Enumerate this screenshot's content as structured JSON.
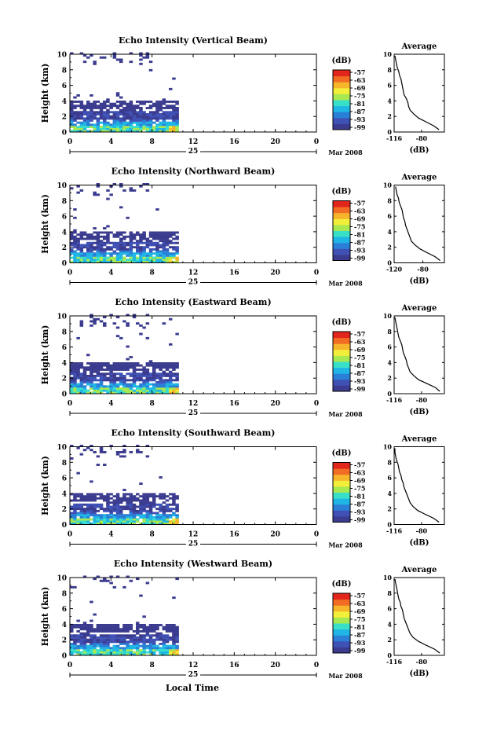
{
  "figure": {
    "xlabel_bottom": "Local Time",
    "date_label": "Mar 2008",
    "day_label": "25",
    "ylabel": "Height (km)",
    "colorbar_unit": "(dB)",
    "avg_title": "Average",
    "avg_xlabel": "(dB)"
  },
  "colors": {
    "scale": [
      "#3b3b8f",
      "#3f51b5",
      "#2a7fd6",
      "#1fb6e6",
      "#39e0c8",
      "#a8e850",
      "#f2ef3a",
      "#f7b52c",
      "#f26c24",
      "#e3261c"
    ]
  },
  "chart_data": [
    {
      "type": "heatmap",
      "title": "Echo Intensity (Vertical Beam)",
      "xlabel": "",
      "ylabel": "Height (km)",
      "xlim": [
        0,
        24
      ],
      "ylim": [
        0,
        10
      ],
      "x_ticks": [
        "0",
        "4",
        "8",
        "12",
        "16",
        "20",
        "0"
      ],
      "y_ticks": [
        "0",
        "2",
        "4",
        "6",
        "8",
        "10"
      ],
      "data_x_end": 10.5,
      "colorbar": {
        "label": "(dB)",
        "ticks": [
          "-57",
          "-63",
          "-69",
          "-75",
          "-81",
          "-87",
          "-93",
          "-99"
        ]
      },
      "average": {
        "type": "line",
        "title": "Average",
        "xlabel": "(dB)",
        "xlim": [
          -116,
          -50
        ],
        "x_ticks": [
          "-116",
          "-80"
        ],
        "ylim": [
          0,
          10
        ],
        "y_ticks": [
          "0",
          "2",
          "4",
          "6",
          "8",
          "10"
        ],
        "y": [
          0.3,
          0.8,
          1.3,
          1.8,
          2.3,
          2.8,
          3.3,
          3.8,
          4.3,
          4.8,
          5.3,
          5.8,
          6.3,
          6.8,
          7.3,
          7.8,
          8.3,
          8.8,
          9.3,
          9.8
        ],
        "x": [
          -57,
          -64,
          -74,
          -84,
          -90,
          -95,
          -97,
          -98,
          -100,
          -103,
          -104,
          -105,
          -106,
          -107,
          -109,
          -110,
          -112,
          -113,
          -114,
          -115
        ]
      }
    },
    {
      "type": "heatmap",
      "title": "Echo Intensity (Northward Beam)",
      "xlabel": "",
      "ylabel": "Height (km)",
      "xlim": [
        0,
        24
      ],
      "ylim": [
        0,
        10
      ],
      "x_ticks": [
        "0",
        "4",
        "8",
        "12",
        "16",
        "20",
        "0"
      ],
      "y_ticks": [
        "0",
        "2",
        "4",
        "6",
        "8",
        "10"
      ],
      "data_x_end": 10.5,
      "colorbar": {
        "label": "(dB)",
        "ticks": [
          "-57",
          "-63",
          "-69",
          "-75",
          "-81",
          "-87",
          "-93",
          "-99"
        ]
      },
      "average": {
        "type": "line",
        "title": "Average",
        "xlabel": "(dB)",
        "xlim": [
          -120,
          -50
        ],
        "x_ticks": [
          "-120",
          "-80"
        ],
        "ylim": [
          0,
          10
        ],
        "y_ticks": [
          "0",
          "2",
          "4",
          "6",
          "8",
          "10"
        ],
        "y": [
          0.3,
          0.8,
          1.3,
          1.8,
          2.3,
          2.8,
          3.3,
          3.8,
          4.3,
          4.8,
          5.3,
          5.8,
          6.3,
          6.8,
          7.3,
          7.8,
          8.3,
          8.8,
          9.3,
          9.8
        ],
        "x": [
          -56,
          -63,
          -74,
          -84,
          -91,
          -96,
          -98,
          -100,
          -102,
          -104,
          -105,
          -107,
          -108,
          -109,
          -111,
          -113,
          -114,
          -116,
          -117,
          -118
        ]
      }
    },
    {
      "type": "heatmap",
      "title": "Echo Intensity (Eastward Beam)",
      "xlabel": "",
      "ylabel": "Height (km)",
      "xlim": [
        0,
        24
      ],
      "ylim": [
        0,
        10
      ],
      "x_ticks": [
        "0",
        "4",
        "8",
        "12",
        "16",
        "20",
        "0"
      ],
      "y_ticks": [
        "0",
        "2",
        "4",
        "6",
        "8",
        "10"
      ],
      "data_x_end": 10.5,
      "colorbar": {
        "label": "(dB)",
        "ticks": [
          "-57",
          "-63",
          "-69",
          "-75",
          "-81",
          "-87",
          "-93",
          "-99"
        ]
      },
      "average": {
        "type": "line",
        "title": "Average",
        "xlabel": "(dB)",
        "xlim": [
          -116,
          -50
        ],
        "x_ticks": [
          "-116",
          "-80"
        ],
        "ylim": [
          0,
          10
        ],
        "y_ticks": [
          "0",
          "2",
          "4",
          "6",
          "8",
          "10"
        ],
        "y": [
          0.3,
          0.8,
          1.3,
          1.8,
          2.3,
          2.8,
          3.3,
          3.8,
          4.3,
          4.8,
          5.3,
          5.8,
          6.3,
          6.8,
          7.3,
          7.8,
          8.3,
          8.8,
          9.3,
          9.8
        ],
        "x": [
          -56,
          -62,
          -73,
          -84,
          -90,
          -95,
          -97,
          -99,
          -100,
          -102,
          -104,
          -105,
          -106,
          -108,
          -110,
          -111,
          -112,
          -113,
          -114,
          -115
        ]
      }
    },
    {
      "type": "heatmap",
      "title": "Echo Intensity (Southward Beam)",
      "xlabel": "",
      "ylabel": "Height (km)",
      "xlim": [
        0,
        24
      ],
      "ylim": [
        0,
        10
      ],
      "x_ticks": [
        "0",
        "4",
        "8",
        "12",
        "16",
        "20",
        "0"
      ],
      "y_ticks": [
        "0",
        "2",
        "4",
        "6",
        "8",
        "10"
      ],
      "data_x_end": 10.5,
      "colorbar": {
        "label": "(dB)",
        "ticks": [
          "-57",
          "-63",
          "-69",
          "-75",
          "-81",
          "-87",
          "-93",
          "-99"
        ]
      },
      "average": {
        "type": "line",
        "title": "Average",
        "xlabel": "(dB)",
        "xlim": [
          -116,
          -50
        ],
        "x_ticks": [
          "-116",
          "-80"
        ],
        "ylim": [
          0,
          10
        ],
        "y_ticks": [
          "0",
          "2",
          "4",
          "6",
          "8",
          "10"
        ],
        "y": [
          0.3,
          0.8,
          1.3,
          1.8,
          2.3,
          2.8,
          3.3,
          3.8,
          4.3,
          4.8,
          5.3,
          5.8,
          6.3,
          6.8,
          7.3,
          7.8,
          8.3,
          8.8,
          9.3,
          9.8
        ],
        "x": [
          -57,
          -64,
          -75,
          -85,
          -91,
          -95,
          -97,
          -99,
          -101,
          -103,
          -104,
          -106,
          -107,
          -109,
          -110,
          -111,
          -113,
          -114,
          -115,
          -115
        ]
      }
    },
    {
      "type": "heatmap",
      "title": "Echo Intensity (Westward Beam)",
      "xlabel": "Local Time",
      "ylabel": "Height (km)",
      "xlim": [
        0,
        24
      ],
      "ylim": [
        0,
        10
      ],
      "x_ticks": [
        "0",
        "4",
        "8",
        "12",
        "16",
        "20",
        "0"
      ],
      "y_ticks": [
        "0",
        "2",
        "4",
        "6",
        "8",
        "10"
      ],
      "data_x_end": 10.5,
      "colorbar": {
        "label": "(dB)",
        "ticks": [
          "-57",
          "-63",
          "-69",
          "-75",
          "-81",
          "-87",
          "-93",
          "-99"
        ]
      },
      "average": {
        "type": "line",
        "title": "Average",
        "xlabel": "(dB)",
        "xlim": [
          -116,
          -50
        ],
        "x_ticks": [
          "-116",
          "-80"
        ],
        "ylim": [
          0,
          10
        ],
        "y_ticks": [
          "0",
          "2",
          "4",
          "6",
          "8",
          "10"
        ],
        "y": [
          0.3,
          0.8,
          1.3,
          1.8,
          2.3,
          2.8,
          3.3,
          3.8,
          4.3,
          4.8,
          5.3,
          5.8,
          6.3,
          6.8,
          7.3,
          7.8,
          8.3,
          8.8,
          9.3,
          9.8
        ],
        "x": [
          -56,
          -63,
          -74,
          -84,
          -91,
          -95,
          -97,
          -99,
          -101,
          -103,
          -104,
          -105,
          -107,
          -108,
          -110,
          -111,
          -112,
          -113,
          -114,
          -115
        ]
      }
    }
  ]
}
